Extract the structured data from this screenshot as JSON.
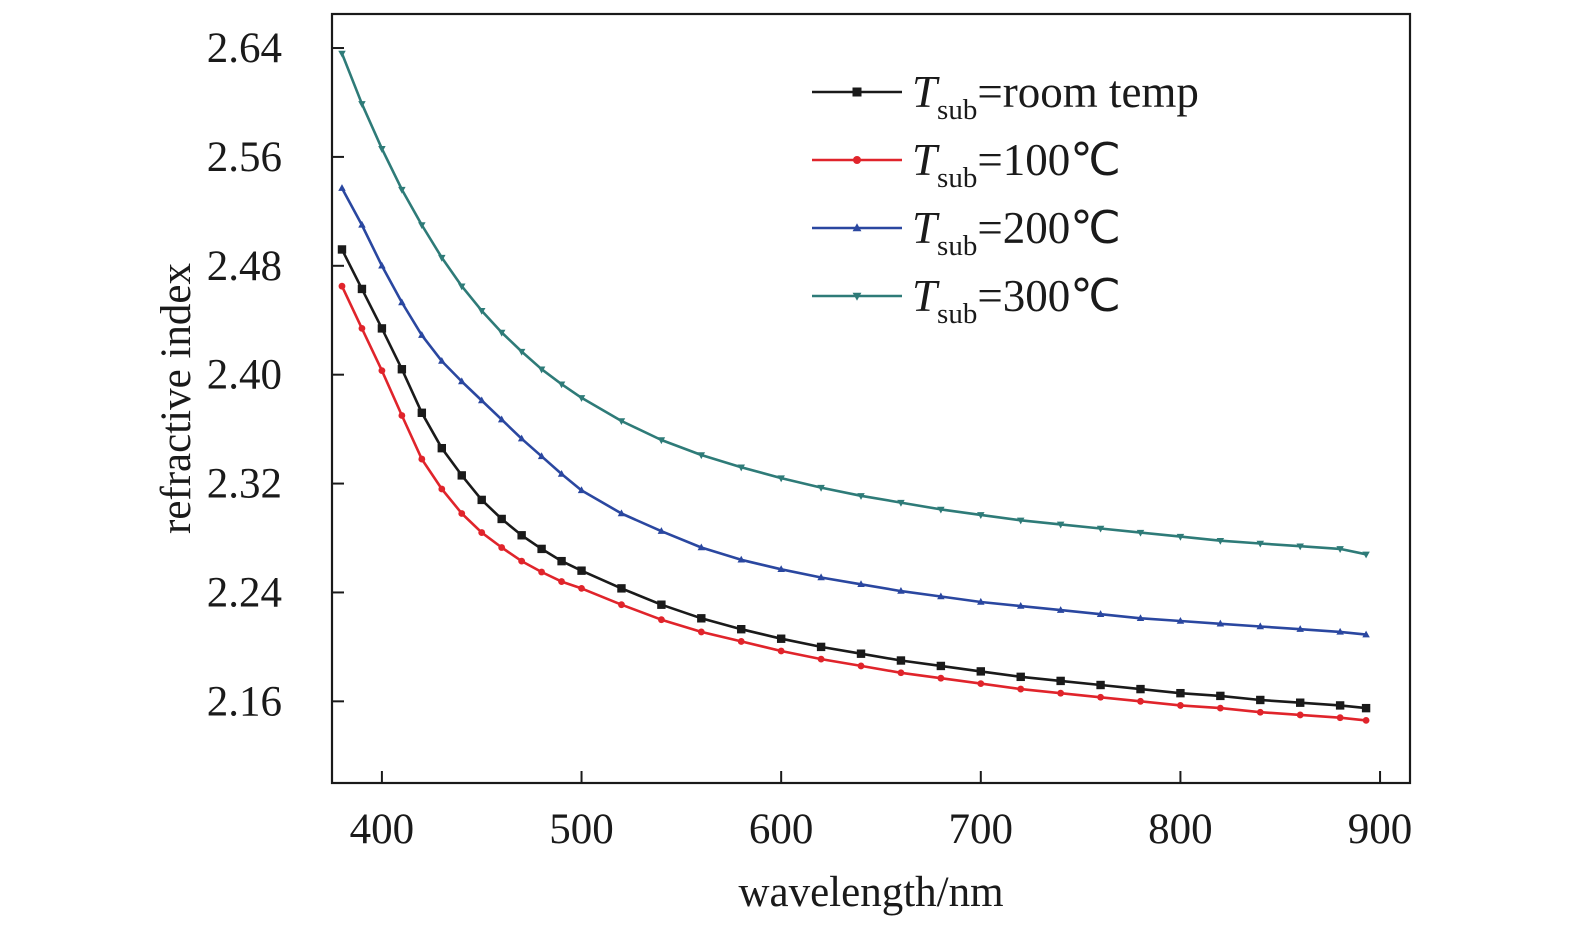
{
  "chart_data": {
    "type": "line",
    "xlabel": "wavelength/nm",
    "ylabel": "refractive index",
    "xlim": [
      375,
      915
    ],
    "ylim": [
      2.1,
      2.665
    ],
    "x_ticks": [
      400,
      500,
      600,
      700,
      800,
      900
    ],
    "y_ticks": [
      2.16,
      2.24,
      2.32,
      2.4,
      2.48,
      2.56,
      2.64
    ],
    "x_tick_labels": [
      "400",
      "500",
      "600",
      "700",
      "800",
      "900"
    ],
    "y_tick_labels": [
      "2.16",
      "2.24",
      "2.32",
      "2.40",
      "2.48",
      "2.56",
      "2.64"
    ],
    "grid": false,
    "legend_position": "top-right",
    "x": [
      380,
      390,
      400,
      410,
      420,
      430,
      440,
      450,
      460,
      470,
      480,
      490,
      500,
      520,
      540,
      560,
      580,
      600,
      620,
      640,
      660,
      680,
      700,
      720,
      740,
      760,
      780,
      800,
      820,
      840,
      860,
      880,
      893
    ],
    "series": [
      {
        "name_main": "T",
        "name_sub": "sub",
        "name_rest": "=room temp",
        "color": "#1a1a1a",
        "marker": "square",
        "values": [
          2.492,
          2.463,
          2.434,
          2.404,
          2.372,
          2.346,
          2.326,
          2.308,
          2.294,
          2.282,
          2.272,
          2.263,
          2.256,
          2.243,
          2.231,
          2.221,
          2.213,
          2.206,
          2.2,
          2.195,
          2.19,
          2.186,
          2.182,
          2.178,
          2.175,
          2.172,
          2.169,
          2.166,
          2.164,
          2.161,
          2.159,
          2.157,
          2.155
        ]
      },
      {
        "name_main": "T",
        "name_sub": "sub",
        "name_rest": "=100℃",
        "color": "#e0242b",
        "marker": "circle",
        "values": [
          2.465,
          2.434,
          2.403,
          2.37,
          2.338,
          2.316,
          2.298,
          2.284,
          2.273,
          2.263,
          2.255,
          2.248,
          2.243,
          2.231,
          2.22,
          2.211,
          2.204,
          2.197,
          2.191,
          2.186,
          2.181,
          2.177,
          2.173,
          2.169,
          2.166,
          2.163,
          2.16,
          2.157,
          2.155,
          2.152,
          2.15,
          2.148,
          2.146
        ]
      },
      {
        "name_main": "T",
        "name_sub": "sub",
        "name_rest": "=200℃",
        "color": "#2a47a0",
        "marker": "triangle-up",
        "values": [
          2.537,
          2.51,
          2.48,
          2.453,
          2.429,
          2.41,
          2.395,
          2.381,
          2.367,
          2.353,
          2.34,
          2.327,
          2.315,
          2.298,
          2.285,
          2.273,
          2.264,
          2.257,
          2.251,
          2.246,
          2.241,
          2.237,
          2.233,
          2.23,
          2.227,
          2.224,
          2.221,
          2.219,
          2.217,
          2.215,
          2.213,
          2.211,
          2.209
        ]
      },
      {
        "name_main": "T",
        "name_sub": "sub",
        "name_rest": "=300℃",
        "color": "#2e7b78",
        "marker": "triangle-down",
        "values": [
          2.636,
          2.599,
          2.566,
          2.536,
          2.51,
          2.486,
          2.465,
          2.447,
          2.431,
          2.417,
          2.404,
          2.393,
          2.383,
          2.366,
          2.352,
          2.341,
          2.332,
          2.324,
          2.317,
          2.311,
          2.306,
          2.301,
          2.297,
          2.293,
          2.29,
          2.287,
          2.284,
          2.281,
          2.278,
          2.276,
          2.274,
          2.272,
          2.268
        ]
      }
    ]
  }
}
